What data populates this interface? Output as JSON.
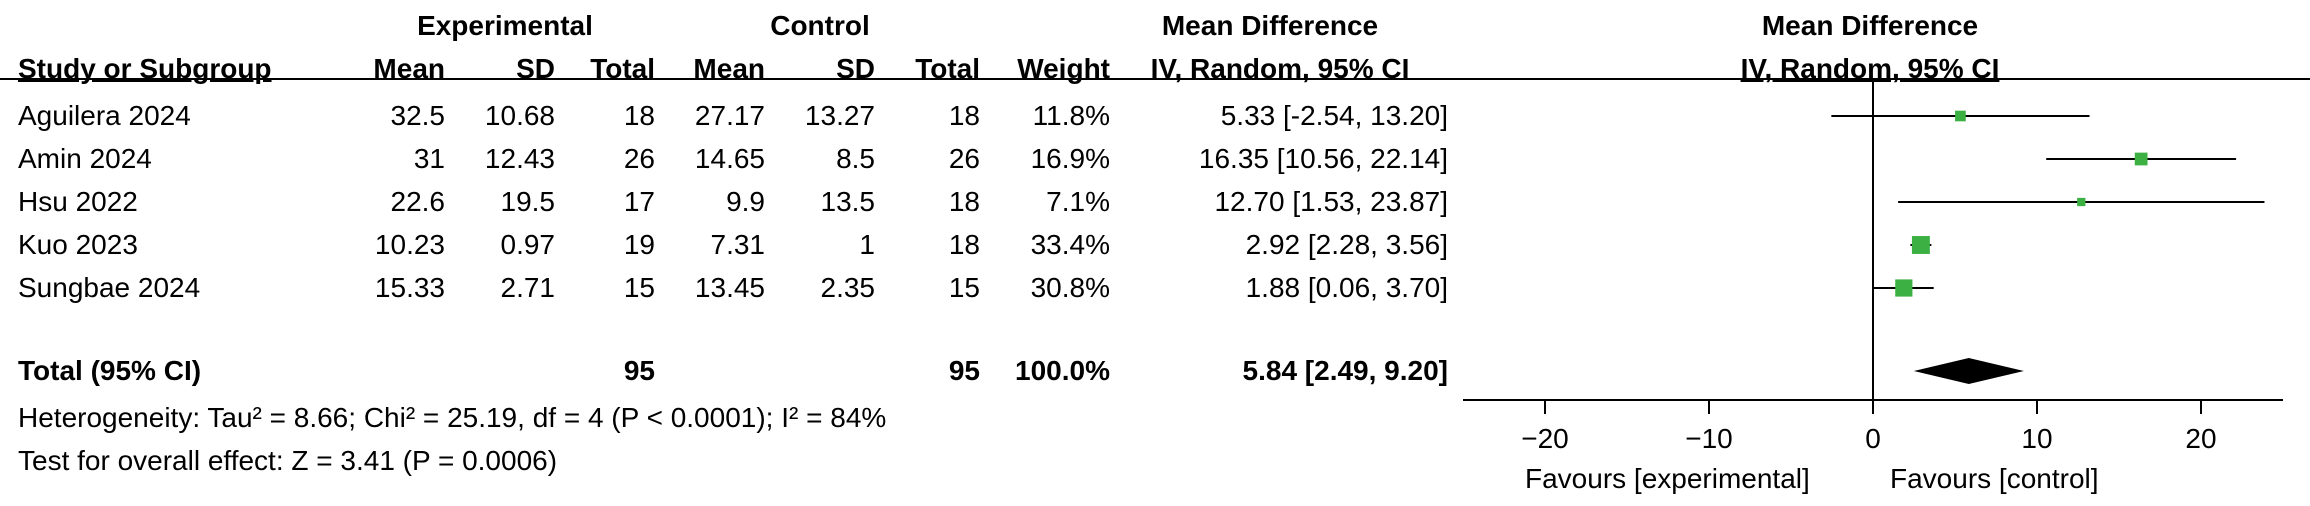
{
  "table": {
    "group_experimental": "Experimental",
    "group_control": "Control",
    "group_md": "Mean Difference",
    "col_study": "Study or Subgroup",
    "col_mean_e": "Mean",
    "col_sd_e": "SD",
    "col_total_e": "Total",
    "col_mean_c": "Mean",
    "col_sd_c": "SD",
    "col_total_c": "Total",
    "col_weight": "Weight",
    "col_md": "IV, Random, 95% CI",
    "rows": [
      {
        "study": "Aguilera 2024",
        "mean_e": "32.5",
        "sd_e": "10.68",
        "total_e": "18",
        "mean_c": "27.17",
        "sd_c": "13.27",
        "total_c": "18",
        "weight": "11.8%",
        "md": "5.33 [-2.54, 13.20]"
      },
      {
        "study": "Amin 2024",
        "mean_e": "31",
        "sd_e": "12.43",
        "total_e": "26",
        "mean_c": "14.65",
        "sd_c": "8.5",
        "total_c": "26",
        "weight": "16.9%",
        "md": "16.35 [10.56, 22.14]"
      },
      {
        "study": "Hsu 2022",
        "mean_e": "22.6",
        "sd_e": "19.5",
        "total_e": "17",
        "mean_c": "9.9",
        "sd_c": "13.5",
        "total_c": "18",
        "weight": "7.1%",
        "md": "12.70 [1.53, 23.87]"
      },
      {
        "study": "Kuo 2023",
        "mean_e": "10.23",
        "sd_e": "0.97",
        "total_e": "19",
        "mean_c": "7.31",
        "sd_c": "1",
        "total_c": "18",
        "weight": "33.4%",
        "md": "2.92 [2.28, 3.56]"
      },
      {
        "study": "Sungbae 2024",
        "mean_e": "15.33",
        "sd_e": "2.71",
        "total_e": "15",
        "mean_c": "13.45",
        "sd_c": "2.35",
        "total_c": "15",
        "weight": "30.8%",
        "md": "1.88 [0.06, 3.70]"
      }
    ],
    "total": {
      "label": "Total (95% CI)",
      "total_e": "95",
      "total_c": "95",
      "weight": "100.0%",
      "md": "5.84 [2.49, 9.20]"
    },
    "heterogeneity": "Heterogeneity: Tau² = 8.66; Chi² = 25.19, df = 4 (P < 0.0001); I² = 84%",
    "overall_effect": "Test for overall effect: Z = 3.41 (P = 0.0006)"
  },
  "chart_data": {
    "type": "scatter",
    "subtype": "forest",
    "title": "Mean Difference",
    "subtitle": "IV, Random, 95% CI",
    "xlim": [
      -25,
      25
    ],
    "xticks": [
      -20,
      -10,
      0,
      10,
      20
    ],
    "xtick_labels": [
      "−20",
      "−10",
      "0",
      "10",
      "20"
    ],
    "favours_left": "Favours [experimental]",
    "favours_right": "Favours [control]",
    "marker_color": "#3cb043",
    "studies": [
      {
        "name": "Aguilera 2024",
        "md": 5.33,
        "lo": -2.54,
        "hi": 13.2,
        "weight": 11.8
      },
      {
        "name": "Amin 2024",
        "md": 16.35,
        "lo": 10.56,
        "hi": 22.14,
        "weight": 16.9
      },
      {
        "name": "Hsu 2022",
        "md": 12.7,
        "lo": 1.53,
        "hi": 23.87,
        "weight": 7.1
      },
      {
        "name": "Kuo 2023",
        "md": 2.92,
        "lo": 2.28,
        "hi": 3.56,
        "weight": 33.4
      },
      {
        "name": "Sungbae 2024",
        "md": 1.88,
        "lo": 0.06,
        "hi": 3.7,
        "weight": 30.8
      }
    ],
    "pooled": {
      "md": 5.84,
      "lo": 2.49,
      "hi": 9.2
    }
  }
}
